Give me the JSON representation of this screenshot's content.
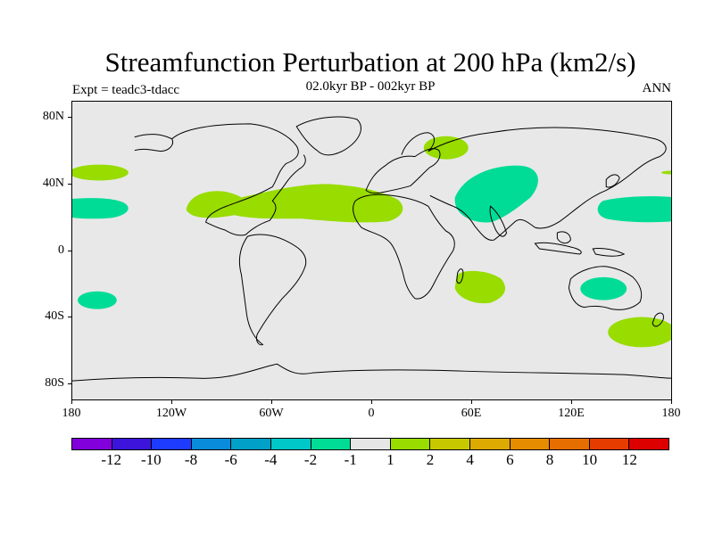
{
  "title": "Streamfunction Perturbation at 200 hPa (km2/s)",
  "subtitle": "02.0kyr BP - 002kyr BP",
  "left_label": "Expt = teadc3-tdacc",
  "right_label": "ANN",
  "colors": {
    "ocean": "#e8e8e8",
    "coast": "#000000",
    "light_green": "#98dc00",
    "teal": "#00dc96"
  },
  "axes": {
    "lat_labels": [
      "80N",
      "40N",
      "0",
      "40S",
      "80S"
    ],
    "lon_labels": [
      "180",
      "120W",
      "60W",
      "0",
      "60E",
      "120E",
      "180"
    ]
  },
  "colorbar": {
    "colors": [
      "#8200dc",
      "#3c14dc",
      "#1e3cff",
      "#0a8cdc",
      "#00a0c8",
      "#00c8c8",
      "#00dc96",
      "#e6e6e6",
      "#98dc00",
      "#c8c800",
      "#dcaa00",
      "#e68c00",
      "#e66e00",
      "#e63c00",
      "#dc0000"
    ],
    "labels": [
      "-12",
      "-10",
      "-8",
      "-6",
      "-4",
      "-2",
      "-1",
      "1",
      "2",
      "4",
      "6",
      "8",
      "10",
      "12"
    ]
  },
  "anomalies": [
    {
      "name": "north-pacific-positive",
      "sign": "positive"
    },
    {
      "name": "subtropical-atlantic-positive",
      "sign": "positive"
    },
    {
      "name": "siberia-positive",
      "sign": "positive"
    },
    {
      "name": "central-asia-negative",
      "sign": "negative"
    },
    {
      "name": "subtropical-pacific-negative",
      "sign": "negative"
    },
    {
      "name": "west-pacific-negative",
      "sign": "negative"
    },
    {
      "name": "south-pacific-negative",
      "sign": "negative"
    },
    {
      "name": "indian-ocean-positive",
      "sign": "positive"
    },
    {
      "name": "australia-negative",
      "sign": "negative"
    },
    {
      "name": "southern-ocean-positive",
      "sign": "positive"
    }
  ]
}
